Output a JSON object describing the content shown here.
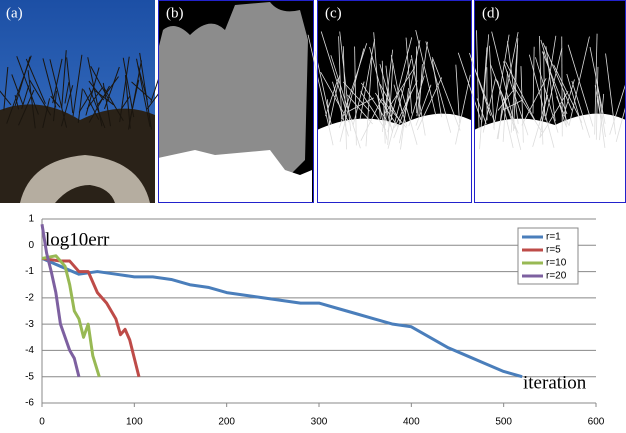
{
  "panels": [
    "(a)",
    "(b)",
    "(c)",
    "(d)"
  ],
  "chart_data": {
    "type": "line",
    "y_label": "log10err",
    "x_label": "iteration",
    "xlim": [
      0,
      600
    ],
    "xticks": [
      0,
      100,
      200,
      300,
      400,
      500,
      600
    ],
    "ylim": [
      -6,
      1
    ],
    "yticks": [
      -6,
      -5,
      -4,
      -3,
      -2,
      -1,
      0,
      1
    ],
    "grid": true,
    "legend": "upper right",
    "series": [
      {
        "name": "r=1",
        "color": "#4a7ebb",
        "x": [
          0,
          20,
          40,
          60,
          80,
          100,
          120,
          140,
          160,
          180,
          200,
          220,
          240,
          260,
          280,
          300,
          320,
          340,
          360,
          380,
          400,
          420,
          440,
          460,
          480,
          500,
          520
        ],
        "values": [
          -0.5,
          -0.8,
          -1.1,
          -1.0,
          -1.1,
          -1.2,
          -1.2,
          -1.3,
          -1.5,
          -1.6,
          -1.8,
          -1.9,
          -2.0,
          -2.1,
          -2.2,
          -2.2,
          -2.4,
          -2.6,
          -2.8,
          -3.0,
          -3.1,
          -3.5,
          -3.9,
          -4.2,
          -4.5,
          -4.8,
          -5.0
        ]
      },
      {
        "name": "r=5",
        "color": "#be4b48",
        "x": [
          0,
          20,
          30,
          40,
          50,
          60,
          70,
          80,
          85,
          90,
          95,
          100,
          105
        ],
        "values": [
          -0.5,
          -0.6,
          -0.6,
          -1.0,
          -1.0,
          -1.8,
          -2.2,
          -2.8,
          -3.4,
          -3.2,
          -3.6,
          -4.3,
          -5.0
        ]
      },
      {
        "name": "r=10",
        "color": "#98b954",
        "x": [
          0,
          15,
          25,
          30,
          35,
          40,
          45,
          50,
          55,
          62
        ],
        "values": [
          -0.5,
          -0.4,
          -0.8,
          -1.5,
          -2.5,
          -2.8,
          -3.5,
          -3.0,
          -4.2,
          -5.0
        ]
      },
      {
        "name": "r=20",
        "color": "#7d60a0",
        "x": [
          0,
          5,
          10,
          15,
          20,
          25,
          30,
          35,
          40
        ],
        "values": [
          0.8,
          -0.3,
          -1.0,
          -1.8,
          -3.0,
          -3.5,
          -4.0,
          -4.3,
          -5.0
        ]
      }
    ]
  }
}
